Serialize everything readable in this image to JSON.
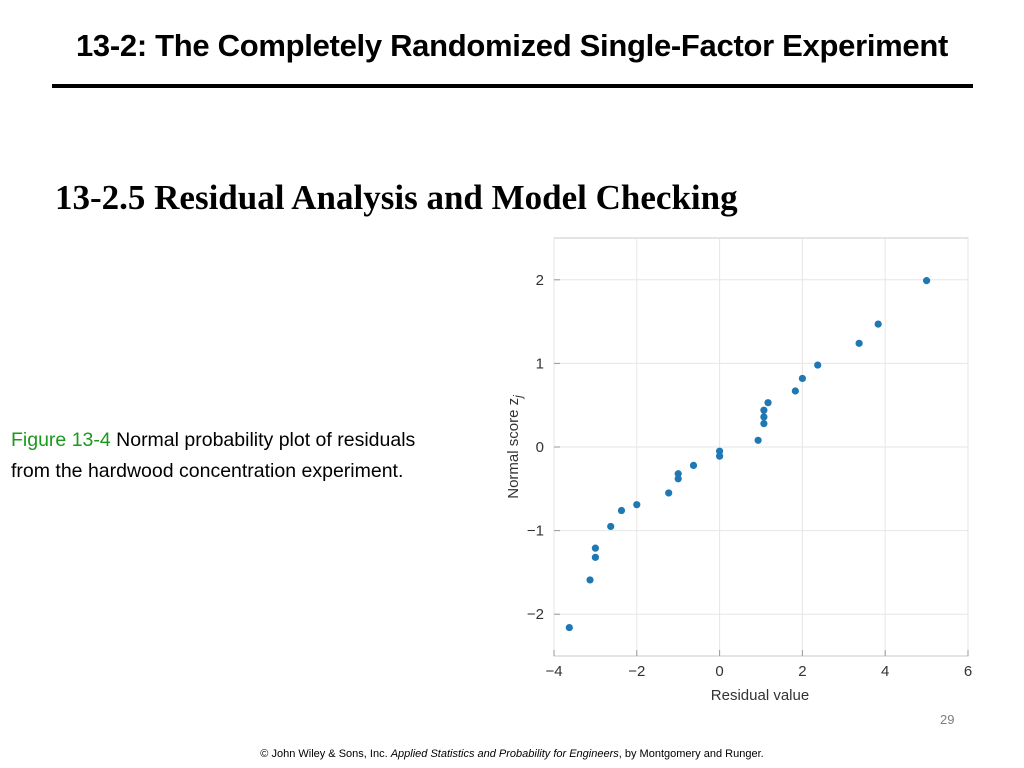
{
  "title": "13-2: The Completely Randomized Single-Factor Experiment",
  "section_heading": "13-2.5 Residual Analysis and Model Checking",
  "caption": {
    "label": "Figure 13-4",
    "text": " Normal probability plot of residuals from the hardwood concentration experiment."
  },
  "page_number": "29",
  "footer": {
    "prefix": "© John Wiley & Sons, Inc.  ",
    "book": "Applied Statistics and Probability for Engineers",
    "suffix": ", by Montgomery and Runger."
  },
  "colors": {
    "point": "#1f77b4",
    "caption_label": "#1a9a1a",
    "grid": "#e6e6e6"
  },
  "chart_data": {
    "type": "scatter",
    "xlabel": "Residual value",
    "ylabel": "Normal score z",
    "ylabel_subscript": "j",
    "xlim": [
      -4,
      6
    ],
    "ylim": [
      -2.5,
      2.5
    ],
    "xticks": [
      -4,
      -2,
      0,
      2,
      4,
      6
    ],
    "xtick_labels": [
      "−4",
      "−2",
      "0",
      "2",
      "4",
      "6"
    ],
    "yticks": [
      -2,
      -1,
      0,
      1,
      2
    ],
    "ytick_labels": [
      "−2",
      "−1",
      "0",
      "1",
      "2"
    ],
    "grid": true,
    "points": [
      {
        "x": -3.63,
        "y": -2.16
      },
      {
        "x": -3.13,
        "y": -1.59
      },
      {
        "x": -3.0,
        "y": -1.32
      },
      {
        "x": -3.0,
        "y": -1.21
      },
      {
        "x": -2.63,
        "y": -0.95
      },
      {
        "x": -2.37,
        "y": -0.76
      },
      {
        "x": -2.0,
        "y": -0.69
      },
      {
        "x": -1.23,
        "y": -0.55
      },
      {
        "x": -1.0,
        "y": -0.38
      },
      {
        "x": -1.0,
        "y": -0.32
      },
      {
        "x": -0.63,
        "y": -0.22
      },
      {
        "x": 0.0,
        "y": -0.11
      },
      {
        "x": 0.0,
        "y": -0.05
      },
      {
        "x": 0.93,
        "y": 0.08
      },
      {
        "x": 1.07,
        "y": 0.28
      },
      {
        "x": 1.07,
        "y": 0.36
      },
      {
        "x": 1.07,
        "y": 0.44
      },
      {
        "x": 1.17,
        "y": 0.53
      },
      {
        "x": 1.83,
        "y": 0.67
      },
      {
        "x": 2.0,
        "y": 0.82
      },
      {
        "x": 2.37,
        "y": 0.98
      },
      {
        "x": 3.37,
        "y": 1.24
      },
      {
        "x": 3.83,
        "y": 1.47
      },
      {
        "x": 5.0,
        "y": 1.99
      }
    ]
  }
}
